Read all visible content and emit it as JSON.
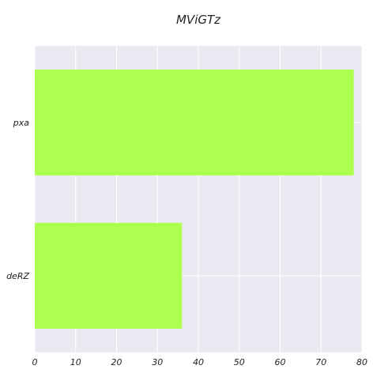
{
  "chart_data": {
    "type": "bar",
    "orientation": "horizontal",
    "title": "MViGTz",
    "categories": [
      "pxa",
      "deRZ"
    ],
    "values": [
      78,
      36
    ],
    "xlabel": "",
    "ylabel": "",
    "xlim": [
      0,
      80
    ],
    "xticks": [
      0,
      10,
      20,
      30,
      40,
      50,
      60,
      70,
      80
    ],
    "grid": true,
    "colors": {
      "bar": "#adff4f",
      "background": "#e9e9f1",
      "grid": "#ffffff"
    }
  }
}
